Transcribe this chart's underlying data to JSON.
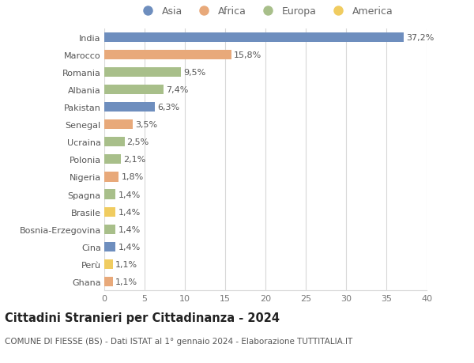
{
  "countries": [
    "India",
    "Marocco",
    "Romania",
    "Albania",
    "Pakistan",
    "Senegal",
    "Ucraina",
    "Polonia",
    "Nigeria",
    "Spagna",
    "Brasile",
    "Bosnia-Erzegovina",
    "Cina",
    "Perù",
    "Ghana"
  ],
  "values": [
    37.2,
    15.8,
    9.5,
    7.4,
    6.3,
    3.5,
    2.5,
    2.1,
    1.8,
    1.4,
    1.4,
    1.4,
    1.4,
    1.1,
    1.1
  ],
  "labels": [
    "37,2%",
    "15,8%",
    "9,5%",
    "7,4%",
    "6,3%",
    "3,5%",
    "2,5%",
    "2,1%",
    "1,8%",
    "1,4%",
    "1,4%",
    "1,4%",
    "1,4%",
    "1,1%",
    "1,1%"
  ],
  "continents": [
    "Asia",
    "Africa",
    "Europa",
    "Europa",
    "Asia",
    "Africa",
    "Europa",
    "Europa",
    "Africa",
    "Europa",
    "America",
    "Europa",
    "Asia",
    "America",
    "Africa"
  ],
  "continent_colors": {
    "Asia": "#6e8ebe",
    "Africa": "#e8a97a",
    "Europa": "#a8bf8a",
    "America": "#f0cc60"
  },
  "legend_order": [
    "Asia",
    "Africa",
    "Europa",
    "America"
  ],
  "xlim": [
    0,
    40
  ],
  "xticks": [
    0,
    5,
    10,
    15,
    20,
    25,
    30,
    35,
    40
  ],
  "title": "Cittadini Stranieri per Cittadinanza - 2024",
  "subtitle": "COMUNE DI FIESSE (BS) - Dati ISTAT al 1° gennaio 2024 - Elaborazione TUTTITALIA.IT",
  "background_color": "#ffffff",
  "grid_color": "#d8d8d8",
  "bar_height": 0.55,
  "label_fontsize": 8,
  "ytick_fontsize": 8,
  "xtick_fontsize": 8,
  "title_fontsize": 10.5,
  "subtitle_fontsize": 7.5
}
